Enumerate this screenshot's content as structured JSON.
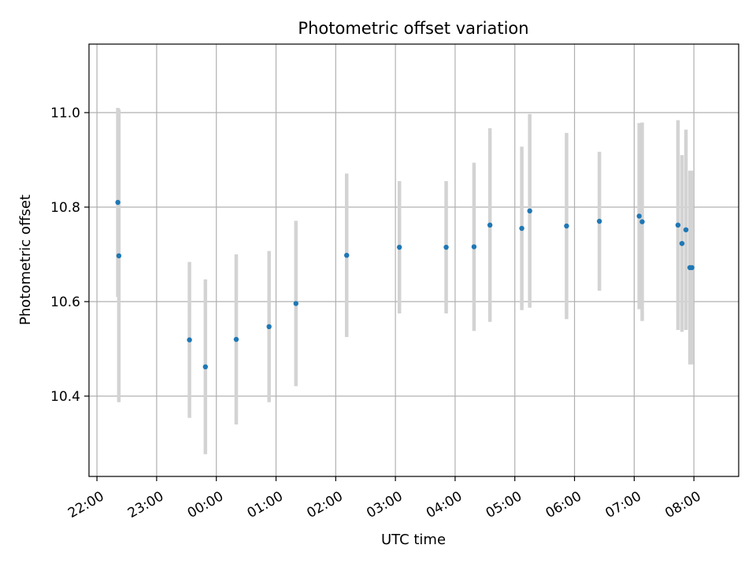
{
  "chart_data": {
    "type": "scatter",
    "title": "Photometric offset variation",
    "xlabel": "UTC time",
    "ylabel": "Photometric offset",
    "x_ticks": [
      "22:00",
      "23:00",
      "00:00",
      "01:00",
      "02:00",
      "03:00",
      "04:00",
      "05:00",
      "06:00",
      "07:00",
      "08:00"
    ],
    "y_ticks": [
      "10.4",
      "10.6",
      "10.8",
      "11.0"
    ],
    "xlim": [
      "21:52",
      "08:45"
    ],
    "ylim": [
      10.23,
      11.145
    ],
    "grid": true,
    "marker_color": "#1f77b4",
    "errorbar_color": "#d3d3d3",
    "points": [
      {
        "time": "22:21",
        "value": 10.81,
        "error": 0.2
      },
      {
        "time": "22:22",
        "value": 10.697,
        "error": 0.31
      },
      {
        "time": "23:33",
        "value": 10.519,
        "error": 0.165
      },
      {
        "time": "23:49",
        "value": 10.462,
        "error": 0.185
      },
      {
        "time": "00:20",
        "value": 10.52,
        "error": 0.18
      },
      {
        "time": "00:53",
        "value": 10.547,
        "error": 0.16
      },
      {
        "time": "01:20",
        "value": 10.596,
        "error": 0.175
      },
      {
        "time": "02:11",
        "value": 10.698,
        "error": 0.173
      },
      {
        "time": "03:04",
        "value": 10.715,
        "error": 0.14
      },
      {
        "time": "03:51",
        "value": 10.715,
        "error": 0.14
      },
      {
        "time": "04:19",
        "value": 10.716,
        "error": 0.178
      },
      {
        "time": "04:35",
        "value": 10.762,
        "error": 0.205
      },
      {
        "time": "05:07",
        "value": 10.755,
        "error": 0.173
      },
      {
        "time": "05:15",
        "value": 10.792,
        "error": 0.205
      },
      {
        "time": "05:52",
        "value": 10.76,
        "error": 0.197
      },
      {
        "time": "06:25",
        "value": 10.77,
        "error": 0.147
      },
      {
        "time": "07:05",
        "value": 10.781,
        "error": 0.197
      },
      {
        "time": "07:08",
        "value": 10.769,
        "error": 0.21
      },
      {
        "time": "07:44",
        "value": 10.762,
        "error": 0.222
      },
      {
        "time": "07:48",
        "value": 10.723,
        "error": 0.187
      },
      {
        "time": "07:52",
        "value": 10.752,
        "error": 0.212
      },
      {
        "time": "07:56",
        "value": 10.672,
        "error": 0.205
      },
      {
        "time": "07:58",
        "value": 10.672,
        "error": 0.205
      }
    ]
  }
}
